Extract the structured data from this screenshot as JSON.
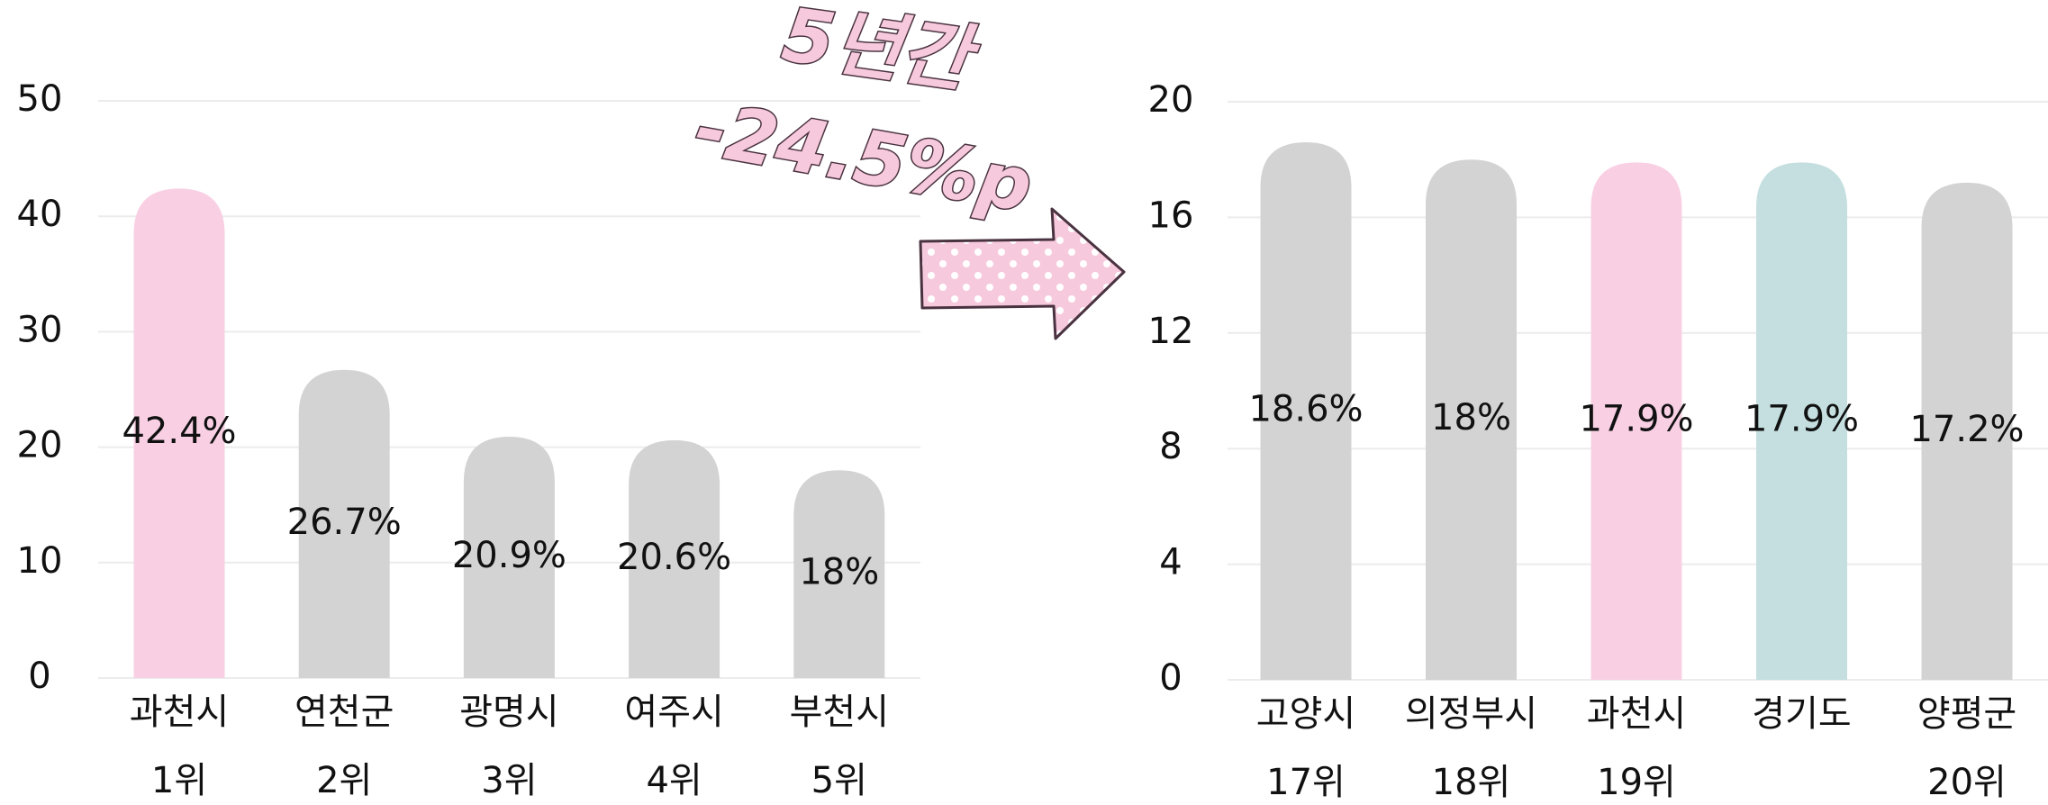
{
  "chart_data": [
    {
      "type": "bar",
      "categories": [
        "과천시",
        "연천군",
        "광명시",
        "여주시",
        "부천시"
      ],
      "ranks": [
        "1위",
        "2위",
        "3위",
        "4위",
        "5위"
      ],
      "values": [
        42.4,
        26.7,
        20.9,
        20.6,
        18
      ],
      "value_labels": [
        "42.4%",
        "26.7%",
        "20.9%",
        "20.6%",
        "18%"
      ],
      "colors": [
        "#f9d0e3",
        "#d3d3d3",
        "#d3d3d3",
        "#d3d3d3",
        "#d3d3d3"
      ],
      "ylim": [
        0,
        50
      ],
      "yticks": [
        0,
        10,
        20,
        30,
        40,
        50
      ],
      "grid": true,
      "annotation": [
        "5년간",
        "-24.5%p"
      ]
    },
    {
      "type": "bar",
      "categories": [
        "고양시",
        "의정부시",
        "과천시",
        "경기도",
        "양평군"
      ],
      "ranks": [
        "17위",
        "18위",
        "19위",
        null,
        "20위"
      ],
      "values": [
        18.6,
        18,
        17.9,
        17.9,
        17.2
      ],
      "value_labels": [
        "18.6%",
        "18%",
        "17.9%",
        "17.9%",
        "17.2%"
      ],
      "colors": [
        "#d3d3d3",
        "#d3d3d3",
        "#f9d0e3",
        "#c5dfe0",
        "#d3d3d3"
      ],
      "ylim": [
        0,
        20
      ],
      "yticks": [
        0,
        4,
        8,
        12,
        16,
        20
      ],
      "grid": true
    }
  ]
}
